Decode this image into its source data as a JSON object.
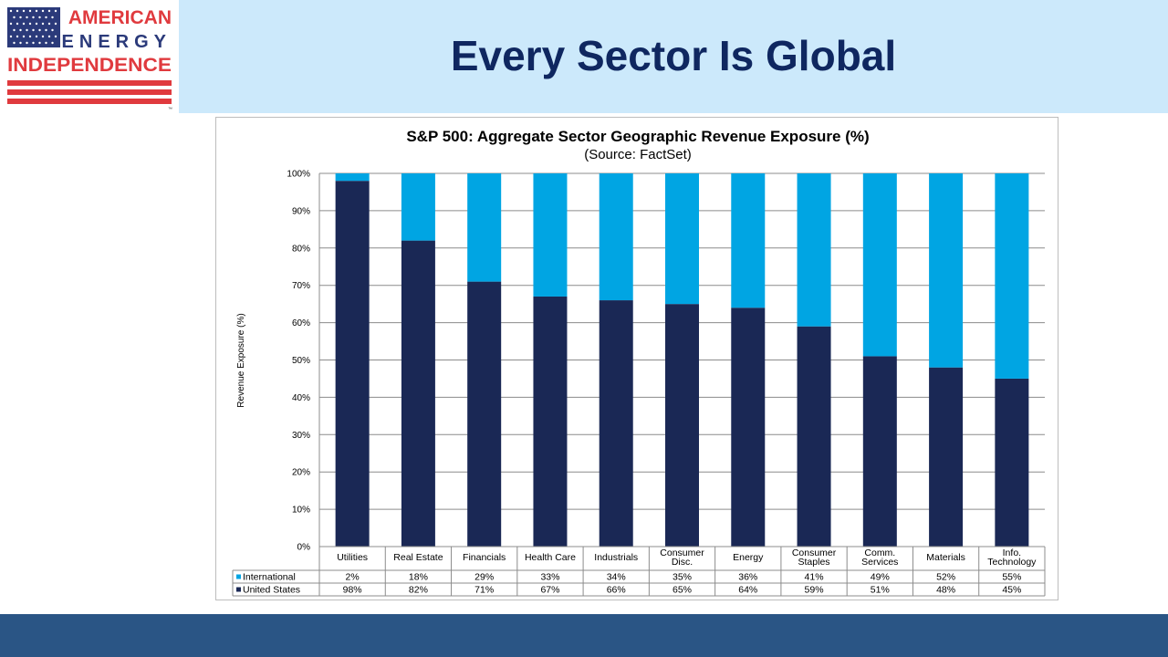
{
  "logo": {
    "line1": "AMERICAN",
    "line2": "ENERGY",
    "line3": "INDEPENDENCE",
    "tm": "™"
  },
  "header": {
    "title": "Every Sector Is Global"
  },
  "colors": {
    "header_band": "#cce9fb",
    "title": "#0f2760",
    "footer_band": "#2a5585",
    "logo_red": "#e03a3e",
    "logo_navy": "#2b3a7a",
    "international": "#00a5e3",
    "united_states": "#1a2855"
  },
  "chart_data": {
    "type": "bar",
    "stacked": true,
    "title": "S&P 500: Aggregate Sector Geographic Revenue Exposure (%)",
    "subtitle": "(Source: FactSet)",
    "ylabel": "Revenue Exposure (%)",
    "ylim": [
      0,
      100
    ],
    "yticks": [
      "0%",
      "10%",
      "20%",
      "30%",
      "40%",
      "50%",
      "60%",
      "70%",
      "80%",
      "90%",
      "100%"
    ],
    "grid": true,
    "categories": [
      [
        "Utilities"
      ],
      [
        "Real Estate"
      ],
      [
        "Financials"
      ],
      [
        "Health Care"
      ],
      [
        "Industrials"
      ],
      [
        "Consumer",
        "Disc."
      ],
      [
        "Energy"
      ],
      [
        "Consumer",
        "Staples"
      ],
      [
        "Comm.",
        "Services"
      ],
      [
        "Materials"
      ],
      [
        "Info.",
        "Technology"
      ]
    ],
    "series": [
      {
        "name": "United States",
        "values": [
          98,
          82,
          71,
          67,
          66,
          65,
          64,
          59,
          51,
          48,
          45
        ],
        "labels": [
          "98%",
          "82%",
          "71%",
          "67%",
          "66%",
          "65%",
          "64%",
          "59%",
          "51%",
          "48%",
          "45%"
        ]
      },
      {
        "name": "International",
        "values": [
          2,
          18,
          29,
          33,
          34,
          35,
          36,
          41,
          49,
          52,
          55
        ],
        "labels": [
          "2%",
          "18%",
          "29%",
          "33%",
          "34%",
          "35%",
          "36%",
          "41%",
          "49%",
          "52%",
          "55%"
        ]
      }
    ]
  }
}
